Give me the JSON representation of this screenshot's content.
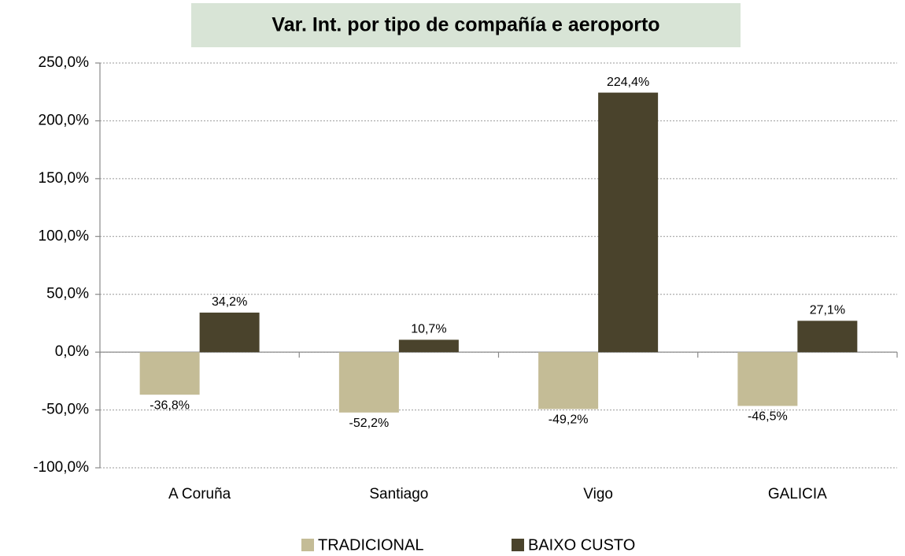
{
  "chart_data": {
    "type": "bar",
    "title": "Var. Int. por tipo de compañía e aeroporto",
    "categories": [
      "A Coruña",
      "Santiago",
      "Vigo",
      "GALICIA"
    ],
    "series": [
      {
        "name": "TRADICIONAL",
        "color": "#c4bc96",
        "values": [
          -36.8,
          -52.2,
          -49.2,
          -46.5
        ],
        "value_labels": [
          "-36,8%",
          "-52,2%",
          "-49,2%",
          "-46,5%"
        ]
      },
      {
        "name": "BAIXO CUSTO",
        "color": "#4a432c",
        "values": [
          34.2,
          10.7,
          224.4,
          27.1
        ],
        "value_labels": [
          "34,2%",
          "10,7%",
          "224,4%",
          "27,1%"
        ]
      }
    ],
    "ylim": [
      -100,
      250
    ],
    "yticks": [
      {
        "value": -100,
        "label": "-100,0%"
      },
      {
        "value": -50,
        "label": "-50,0%"
      },
      {
        "value": 0,
        "label": "0,0%"
      },
      {
        "value": 50,
        "label": "50,0%"
      },
      {
        "value": 100,
        "label": "100,0%"
      },
      {
        "value": 150,
        "label": "150,0%"
      },
      {
        "value": 200,
        "label": "200,0%"
      },
      {
        "value": 250,
        "label": "250,0%"
      }
    ],
    "grid": true,
    "legend": "bottom"
  }
}
